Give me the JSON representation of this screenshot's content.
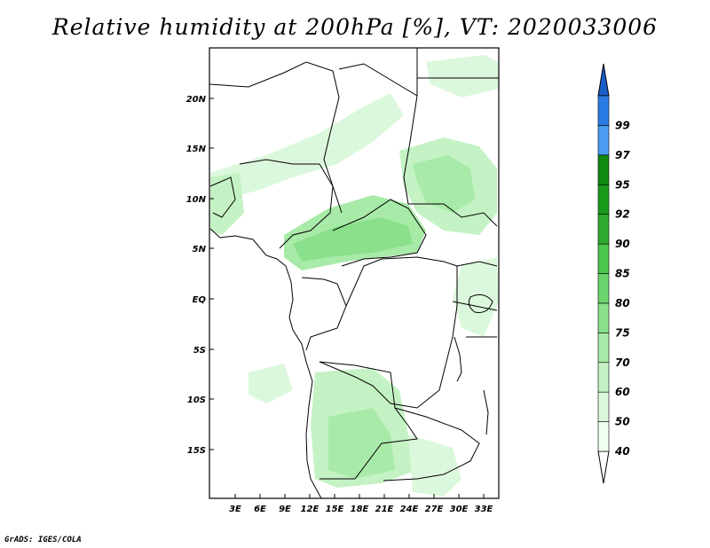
{
  "title": "Relative humidity at 200hPa [%], VT: 2020033006",
  "credit": "GrADS: IGES/COLA",
  "map": {
    "variable": "Relative humidity",
    "level": "200hPa",
    "units": "%",
    "valid_time": "2020033006",
    "lon_ticks": [
      "3E",
      "6E",
      "9E",
      "12E",
      "15E",
      "18E",
      "21E",
      "24E",
      "27E",
      "30E",
      "33E"
    ],
    "lat_ticks": [
      "20N",
      "15N",
      "10N",
      "5N",
      "EQ",
      "5S",
      "10S",
      "15S"
    ]
  },
  "colorbar": {
    "levels": [
      {
        "label": "40",
        "color": "#f0fff0"
      },
      {
        "label": "50",
        "color": "#dcf8dc"
      },
      {
        "label": "60",
        "color": "#c4f2c4"
      },
      {
        "label": "70",
        "color": "#a8eaa8"
      },
      {
        "label": "75",
        "color": "#8be08b"
      },
      {
        "label": "80",
        "color": "#6cd46c"
      },
      {
        "label": "85",
        "color": "#4cc64c"
      },
      {
        "label": "90",
        "color": "#2eaa2e"
      },
      {
        "label": "92",
        "color": "#1a9a1a"
      },
      {
        "label": "95",
        "color": "#108a10"
      },
      {
        "label": "97",
        "color": "#4a9cf0"
      },
      {
        "label": "99",
        "color": "#2a7ae4"
      }
    ],
    "top_color": "#1a5ec8"
  }
}
